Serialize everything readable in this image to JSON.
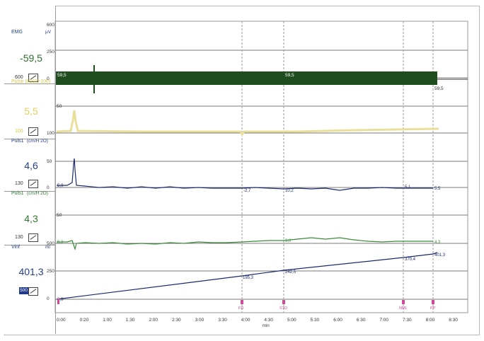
{
  "channels": [
    {
      "name": "EMG",
      "unit": "µV",
      "value": "-59,5",
      "scale": "600",
      "value_color": "#2f6d2f",
      "label_color": "#24408a"
    },
    {
      "name": "Pulse (Hz)(0-100)",
      "unit": "",
      "value": "5,5",
      "scale": "100",
      "value_color": "#e0d060",
      "label_color": "#d8c640"
    },
    {
      "name": "Puls1",
      "unit": "(cm/H 2O)",
      "value": "4,6",
      "scale": "130",
      "value_color": "#24408a",
      "label_color": "#24408a"
    },
    {
      "name": "Puls1",
      "unit": "(cm/H 2O)",
      "value": "4,3",
      "scale": "130",
      "value_color": "#2d7a2d",
      "label_color": "#2d7a2d"
    },
    {
      "name": "Vinf",
      "unit": "ml",
      "value": "401,3",
      "scale": "500",
      "value_color": "#24408a",
      "label_color": "#24408a"
    }
  ],
  "yticks": {
    "emg": [
      "600",
      "250",
      "0"
    ],
    "pves": [
      "50",
      "100"
    ],
    "pabd": [
      "50",
      "0"
    ],
    "pdet": [
      "50",
      "500"
    ],
    "vinf": [
      "250",
      "0"
    ]
  },
  "emg_labels": [
    "59,5",
    "59,5",
    "-59,5",
    "59,5",
    "59,5"
  ],
  "pabd_labels": [
    "5,0",
    "-2,7",
    "10,2",
    "5,1",
    "5,5"
  ],
  "pdet_labels": [
    "5,3",
    "3,0",
    "4,3"
  ],
  "vinf_labels": [
    "0,0",
    "195,3",
    "242,5",
    "370,4",
    "401,3"
  ],
  "markers": [
    "FD",
    "STD",
    "NML",
    "PP"
  ],
  "xaxis": {
    "ticks": [
      "0:00",
      "0:20",
      "1:00",
      "1:30",
      "2:00",
      "2:30",
      "3:00",
      "3:30",
      "4:00",
      "4:30",
      "5:00",
      "5:30",
      "6:00",
      "6:30",
      "7:00",
      "7:30",
      "8:00",
      "8:30"
    ],
    "unit": "min"
  },
  "colors": {
    "emg": "#1f4d1f",
    "pves": "#e8e09a",
    "pabd": "#1b2a6e",
    "pdet": "#3a8a3a",
    "vinf": "#1b2a6e",
    "marker": "#d04a9a"
  }
}
